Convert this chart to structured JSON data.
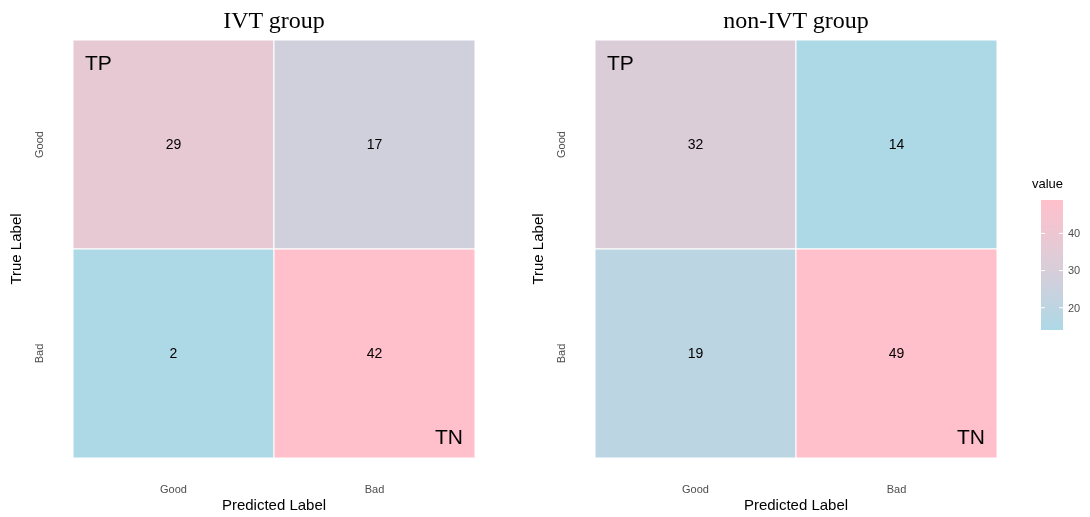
{
  "chart_data": [
    {
      "type": "heatmap",
      "title": "IVT group",
      "xlabel": "Predicted Label",
      "ylabel": "True Label",
      "categories": [
        "Good",
        "Bad"
      ],
      "y_categories": [
        "Good",
        "Bad"
      ],
      "cells": [
        [
          29,
          17
        ],
        [
          2,
          42
        ]
      ],
      "data_labels": true,
      "annotations": [
        "TP",
        "TN"
      ]
    },
    {
      "type": "heatmap",
      "title": "non-IVT group",
      "xlabel": "Predicted Label",
      "ylabel": "True Label",
      "categories": [
        "Good",
        "Bad"
      ],
      "y_categories": [
        "Good",
        "Bad"
      ],
      "cells": [
        [
          32,
          14
        ],
        [
          19,
          49
        ]
      ],
      "data_labels": true,
      "clim": [
        14,
        49
      ],
      "cticks": [
        20,
        30,
        40
      ],
      "clabel": "value",
      "annotations": [
        "TP",
        "TN"
      ]
    }
  ]
}
